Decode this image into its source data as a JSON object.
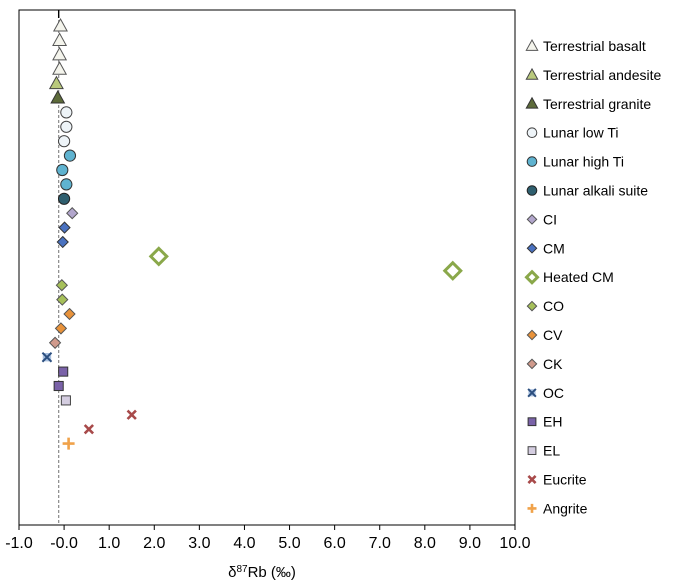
{
  "chart_data": {
    "type": "scatter",
    "xlabel_parts": [
      "δ",
      "87",
      "Rb (‰)"
    ],
    "xlim": [
      -1.0,
      10.0
    ],
    "x_ticks": [
      "-1.0",
      "-0.0",
      "1.0",
      "2.0",
      "3.0",
      "4.0",
      "5.0",
      "6.0",
      "7.0",
      "8.0",
      "9.0",
      "10.0"
    ],
    "x_tick_values": [
      -1,
      0,
      1,
      2,
      3,
      4,
      5,
      6,
      7,
      8,
      9,
      10
    ],
    "reference_line_x": -0.12,
    "grid": false,
    "legend_position": "right",
    "series": [
      {
        "name": "Terrestrial basalt",
        "marker": "triangle",
        "fill": "#f4f4ec",
        "stroke": "#555555",
        "points": [
          -0.08,
          -0.1,
          -0.1,
          -0.1
        ]
      },
      {
        "name": "Terrestrial andesite",
        "marker": "triangle",
        "fill": "#b9c97c",
        "stroke": "#444444",
        "points": [
          -0.17
        ]
      },
      {
        "name": "Terrestrial granite",
        "marker": "triangle",
        "fill": "#5d6b3a",
        "stroke": "#333333",
        "points": [
          -0.14
        ]
      },
      {
        "name": "Lunar low Ti",
        "marker": "circle",
        "fill": "#eef4f8",
        "stroke": "#444444",
        "points": [
          0.05,
          0.05,
          0.0
        ]
      },
      {
        "name": "Lunar high Ti",
        "marker": "circle",
        "fill": "#5fb3d0",
        "stroke": "#333333",
        "points": [
          0.13,
          -0.04,
          0.05
        ]
      },
      {
        "name": "Lunar alkali suite",
        "marker": "circle",
        "fill": "#2f5f6f",
        "stroke": "#222222",
        "points": [
          0.0
        ]
      },
      {
        "name": "CI",
        "marker": "diamond",
        "fill": "#b2a6cc",
        "stroke": "#555555",
        "points": [
          0.18
        ]
      },
      {
        "name": "CM",
        "marker": "diamond",
        "fill": "#4a72c0",
        "stroke": "#333333",
        "points": [
          0.01,
          -0.03
        ]
      },
      {
        "name": "Heated CM",
        "marker": "diamond-open",
        "fill": "none",
        "stroke": "#8aa84a",
        "points": [
          2.1,
          8.62
        ]
      },
      {
        "name": "CO",
        "marker": "diamond",
        "fill": "#a6c05a",
        "stroke": "#555555",
        "points": [
          -0.05,
          -0.04
        ]
      },
      {
        "name": "CV",
        "marker": "diamond",
        "fill": "#e8923a",
        "stroke": "#555555",
        "points": [
          0.12,
          -0.07
        ]
      },
      {
        "name": "CK",
        "marker": "diamond",
        "fill": "#d09a8c",
        "stroke": "#555555",
        "points": [
          -0.2
        ]
      },
      {
        "name": "OC",
        "marker": "x",
        "fill": "#a9c0e0",
        "stroke": "#2c4f7f",
        "points": [
          -0.38
        ]
      },
      {
        "name": "EH",
        "marker": "square",
        "fill": "#7a62a8",
        "stroke": "#333333",
        "points": [
          -0.02,
          -0.12
        ]
      },
      {
        "name": "EL",
        "marker": "square",
        "fill": "#d4cde0",
        "stroke": "#444444",
        "points": [
          0.04
        ]
      },
      {
        "name": "Eucrite",
        "marker": "cross",
        "fill": "none",
        "stroke": "#a84a4a",
        "points": [
          1.5,
          0.55
        ]
      },
      {
        "name": "Angrite",
        "marker": "plus",
        "fill": "none",
        "stroke": "#f0a24a",
        "points": [
          0.1
        ]
      }
    ]
  }
}
